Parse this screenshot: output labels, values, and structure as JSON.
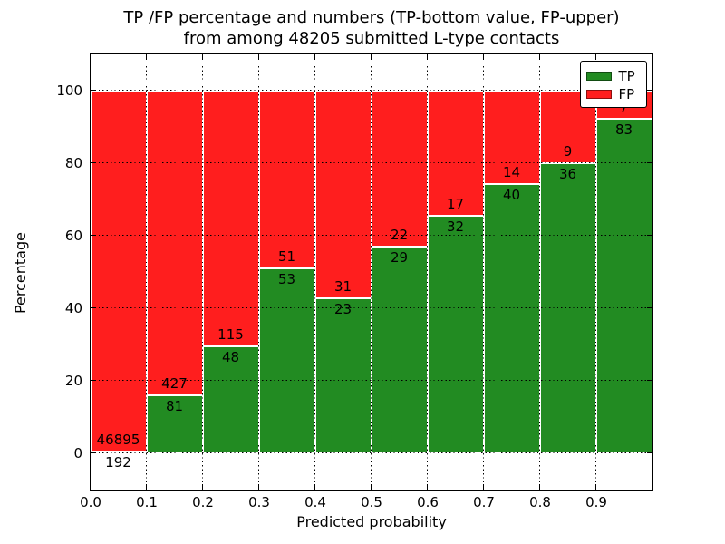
{
  "chart_data": {
    "type": "bar",
    "stacked": true,
    "title_lines": [
      "TP /FP percentage and numbers (TP-bottom value, FP-upper)",
      "from among 48205 submitted L-type contacts"
    ],
    "total_submitted": 48205,
    "xlabel": "Predicted probability",
    "ylabel": "Percentage",
    "x_tick_labels": [
      "0.0",
      "0.1",
      "0.2",
      "0.3",
      "0.4",
      "0.5",
      "0.6",
      "0.7",
      "0.8",
      "0.9"
    ],
    "y_ticks": [
      0,
      20,
      40,
      60,
      80,
      100
    ],
    "xlim": [
      0.0,
      1.0
    ],
    "ylim": [
      0,
      100
    ],
    "display_ylim": [
      -10,
      110
    ],
    "bin_width": 0.1,
    "grid": true,
    "legend_position": "upper right",
    "series": [
      {
        "name": "TP",
        "color": "#228b22",
        "values": [
          192,
          81,
          48,
          53,
          23,
          29,
          32,
          40,
          36,
          83
        ]
      },
      {
        "name": "FP",
        "color": "#ff1e1e",
        "values": [
          46895,
          427,
          115,
          51,
          31,
          22,
          17,
          14,
          9,
          7
        ]
      }
    ],
    "tp_percent": [
      0.41,
      15.94,
      29.45,
      50.96,
      42.59,
      56.86,
      65.31,
      74.07,
      80.0,
      92.22
    ]
  }
}
